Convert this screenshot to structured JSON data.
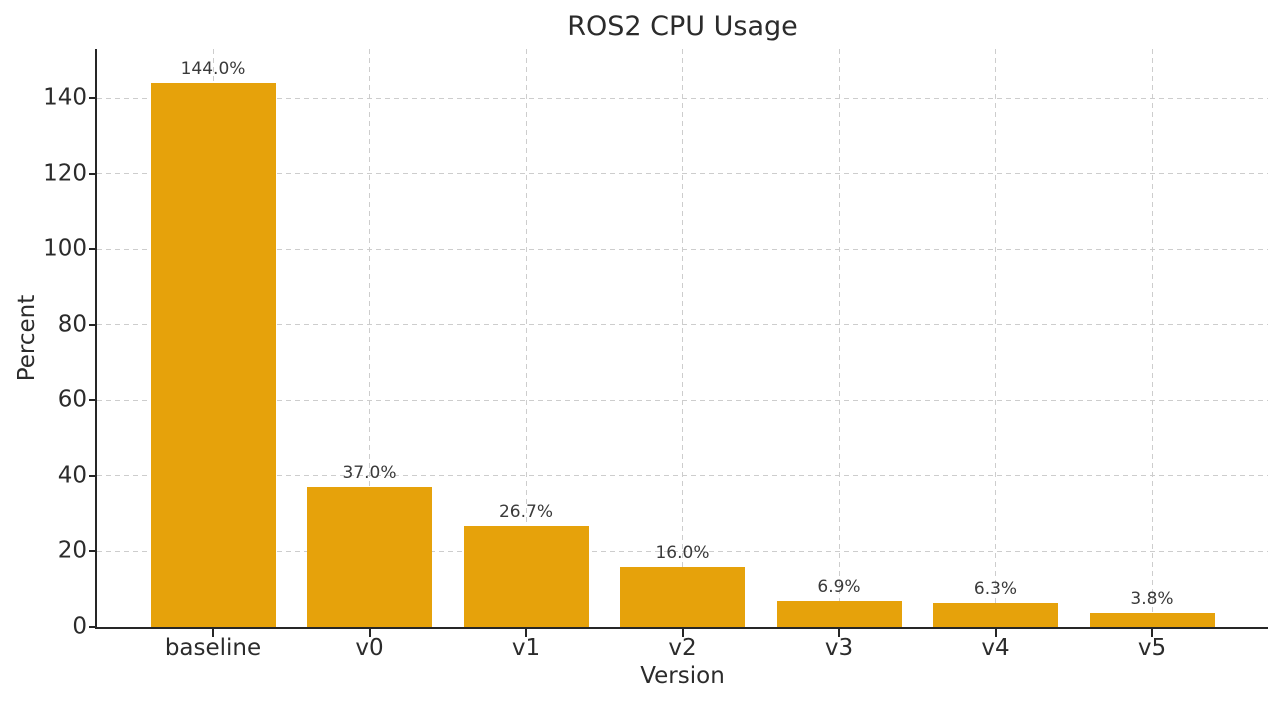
{
  "chart_data": {
    "type": "bar",
    "title": "ROS2 CPU Usage",
    "xlabel": "Version",
    "ylabel": "Percent",
    "categories": [
      "baseline",
      "v0",
      "v1",
      "v2",
      "v3",
      "v4",
      "v5"
    ],
    "values": [
      144.0,
      37.0,
      26.7,
      16.0,
      6.9,
      6.3,
      3.8
    ],
    "bar_labels": [
      "144.0%",
      "37.0%",
      "26.7%",
      "16.0%",
      "6.9%",
      "6.3%",
      "3.8%"
    ],
    "yticks": [
      0,
      20,
      40,
      60,
      80,
      100,
      120,
      140
    ],
    "ylim": [
      0,
      153
    ],
    "grid": "dashed-both-axes",
    "legend": "none",
    "colors": {
      "bar": "#e6a20b",
      "grid": "#cdcdcd",
      "spine": "#262626",
      "text": "#2b2b2b",
      "background": "#ffffff"
    }
  }
}
